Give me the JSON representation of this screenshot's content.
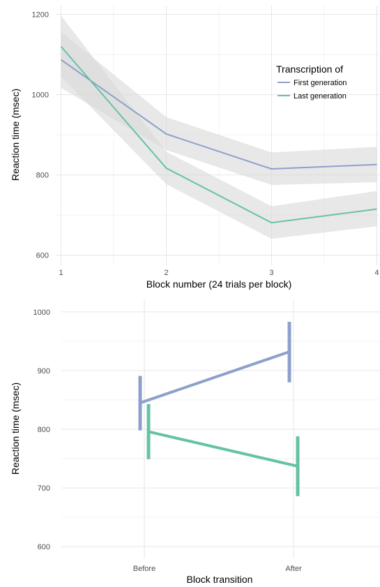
{
  "chart_data": [
    {
      "type": "line",
      "xlabel": "Block number (24 trials per block)",
      "ylabel": "Reaction time (msec)",
      "x": [
        1,
        2,
        3,
        4
      ],
      "x_tick_labels": [
        "1",
        "2",
        "3",
        "4"
      ],
      "y_ticks": [
        600,
        800,
        1000,
        1200
      ],
      "y_tick_labels": [
        "600",
        "800",
        "1000",
        "1200"
      ],
      "xlim": [
        0.95,
        4.03
      ],
      "ylim": [
        575,
        1222
      ],
      "grid": true,
      "legend": {
        "title": "Transcription of",
        "placement": "top-right"
      },
      "series": [
        {
          "name": "First generation",
          "color": "#8da0cb",
          "values": [
            1087,
            902,
            815,
            826
          ],
          "ci_lower": [
            1017,
            862,
            775,
            782
          ],
          "ci_upper": [
            1157,
            944,
            856,
            870
          ]
        },
        {
          "name": "Last generation",
          "color": "#66c2a5",
          "values": [
            1120,
            817,
            681,
            715
          ],
          "ci_lower": [
            1045,
            777,
            641,
            672
          ],
          "ci_upper": [
            1197,
            858,
            722,
            760
          ]
        }
      ],
      "ribbon_color": "#d9d9d9"
    },
    {
      "type": "line",
      "subtype": "errorbar",
      "xlabel": "Block transition",
      "ylabel": "Reaction time (msec)",
      "categories": [
        "Before",
        "After"
      ],
      "y_ticks": [
        600,
        700,
        800,
        900,
        1000
      ],
      "y_tick_labels": [
        "600",
        "700",
        "800",
        "900",
        "1000"
      ],
      "ylim": [
        580,
        1020
      ],
      "grid": true,
      "series": [
        {
          "color": "#8da0cb",
          "values": [
            845,
            932
          ],
          "err_lower": [
            798,
            880
          ],
          "err_upper": [
            891,
            983
          ]
        },
        {
          "color": "#66c2a5",
          "values": [
            796,
            737
          ],
          "err_lower": [
            749,
            686
          ],
          "err_upper": [
            843,
            788
          ]
        }
      ]
    }
  ]
}
